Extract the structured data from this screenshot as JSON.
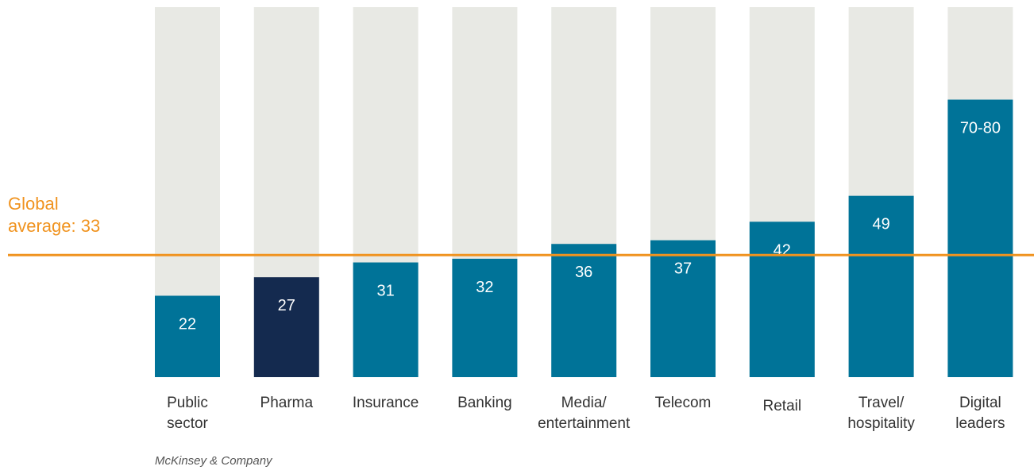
{
  "chart_data": {
    "type": "bar",
    "categories": [
      [
        "Public",
        "sector"
      ],
      [
        "Pharma"
      ],
      [
        "Insurance"
      ],
      [
        "Banking"
      ],
      [
        "Media/",
        "entertainment"
      ],
      [
        "Telecom"
      ],
      [
        "Retail"
      ],
      [
        "Travel/",
        "hospitality"
      ],
      [
        "Digital",
        "leaders"
      ]
    ],
    "values": [
      22,
      27,
      31,
      32,
      36,
      37,
      42,
      49,
      75
    ],
    "value_labels": [
      "22",
      "27",
      "31",
      "32",
      "36",
      "37",
      "42",
      "49",
      "70-80"
    ],
    "highlight_index": 1,
    "ylim": [
      0,
      100
    ],
    "reference_line": {
      "value": 33,
      "label_line1": "Global",
      "label_line2": "average: 33"
    },
    "colors": {
      "bar": "#007398",
      "highlight": "#142A4F",
      "background_bar": "#E8E9E4",
      "reference": "#F0931F",
      "value_text": "#FFFFFF",
      "category_text": "#333333"
    }
  },
  "source": "McKinsey & Company"
}
